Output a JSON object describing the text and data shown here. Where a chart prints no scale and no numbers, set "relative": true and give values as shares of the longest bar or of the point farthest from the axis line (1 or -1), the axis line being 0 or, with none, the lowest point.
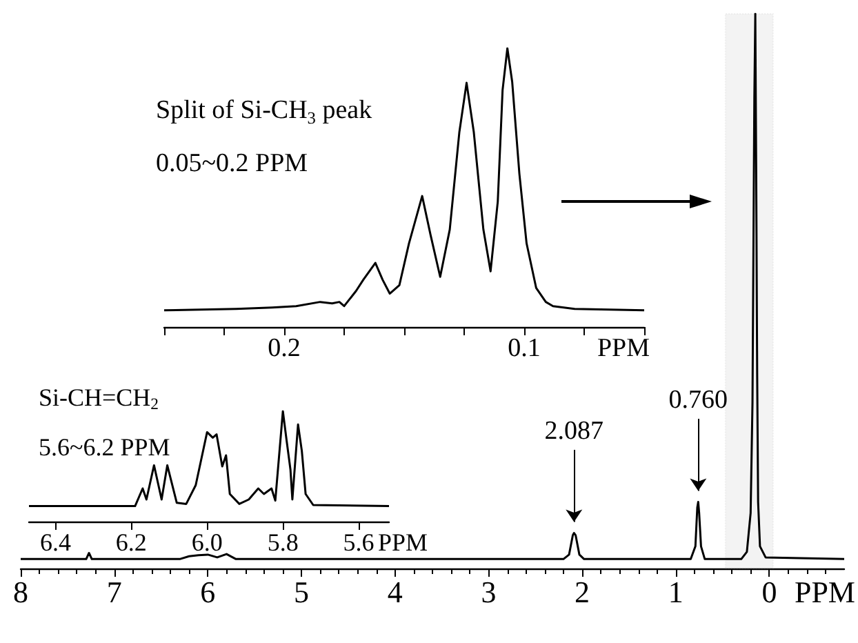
{
  "chart_data": [
    {
      "type": "line",
      "xlabel": "PPM",
      "relative": true,
      "xlim": [
        8,
        -0.8
      ],
      "xticks": [
        8,
        7,
        6,
        5,
        4,
        3,
        2,
        1,
        0
      ],
      "x": [
        8,
        7.3,
        7.27,
        7.24,
        6.3,
        6.2,
        6.1,
        6.0,
        5.9,
        5.8,
        5.7,
        2.2,
        2.14,
        2.1,
        2.087,
        2.07,
        2.03,
        1.98,
        0.84,
        0.79,
        0.77,
        0.76,
        0.75,
        0.73,
        0.69,
        0.3,
        0.24,
        0.2,
        0.18,
        0.16,
        0.15,
        0.14,
        0.13,
        0.12,
        0.1,
        0.07,
        0.04,
        -0.8
      ],
      "series": [
        {
          "color": "#000000",
          "values": [
            0.017,
            0.017,
            0.028,
            0.017,
            0.017,
            0.022,
            0.024,
            0.025,
            0.02,
            0.026,
            0.017,
            0.017,
            0.025,
            0.06,
            0.064,
            0.06,
            0.025,
            0.017,
            0.017,
            0.04,
            0.11,
            0.12,
            0.1,
            0.04,
            0.017,
            0.017,
            0.03,
            0.1,
            0.3,
            0.85,
            1.0,
            0.7,
            0.35,
            0.12,
            0.04,
            0.03,
            0.02,
            0.017
          ]
        }
      ],
      "annotations": [
        {
          "text": "2.087",
          "x": 2.087,
          "y": 0.064
        },
        {
          "text": "0.760",
          "x": 0.76,
          "y": 0.12
        }
      ],
      "bands": [
        {
          "axis": "x",
          "from": 0.47,
          "to": -0.04,
          "color": "#999999"
        }
      ]
    },
    {
      "type": "line",
      "title": "Split of Si-CH$_{3}$ peak",
      "subtitle": "0.05~0.2 PPM",
      "xlabel": "PPM",
      "relative": true,
      "xlim": [
        0.25,
        0.05
      ],
      "xticks": [
        {
          "value": 0.25,
          "label": null
        },
        {
          "value": 0.225,
          "label": null
        },
        0.2,
        {
          "value": 0.175,
          "label": null
        },
        {
          "value": 0.15,
          "label": null
        },
        {
          "value": 0.125,
          "label": null
        },
        0.1,
        {
          "value": 0.075,
          "label": null
        },
        {
          "value": 0.05,
          "label": null
        }
      ],
      "x": [
        0.25,
        0.22,
        0.205,
        0.195,
        0.185,
        0.18,
        0.177,
        0.175,
        0.17,
        0.167,
        0.162,
        0.159,
        0.156,
        0.152,
        0.148,
        0.1425,
        0.139,
        0.135,
        0.131,
        0.127,
        0.124,
        0.121,
        0.117,
        0.114,
        0.111,
        0.109,
        0.107,
        0.105,
        0.102,
        0.099,
        0.095,
        0.091,
        0.088,
        0.079,
        0.05
      ],
      "series": [
        {
          "color": "#000000",
          "values": [
            0.06,
            0.065,
            0.07,
            0.075,
            0.09,
            0.085,
            0.09,
            0.075,
            0.13,
            0.17,
            0.23,
            0.17,
            0.12,
            0.15,
            0.3,
            0.47,
            0.33,
            0.18,
            0.35,
            0.7,
            0.876,
            0.7,
            0.35,
            0.2,
            0.45,
            0.85,
            1.0,
            0.88,
            0.55,
            0.3,
            0.14,
            0.09,
            0.075,
            0.065,
            0.06
          ]
        }
      ]
    },
    {
      "type": "line",
      "title": "Si-CH=CH$_{2}$",
      "subtitle": "5.6~6.2 PPM",
      "xlabel": "PPM",
      "relative": true,
      "xlim": [
        6.47,
        5.52
      ],
      "xticks": [
        6.4,
        6.2,
        {
          "value": 6,
          "label": "6.0"
        },
        5.8,
        5.6
      ],
      "x": [
        6.47,
        6.2,
        6.19,
        6.17,
        6.16,
        6.14,
        6.12,
        6.105,
        6.08,
        6.055,
        6.03,
        6.0,
        5.985,
        5.975,
        5.96,
        5.95,
        5.94,
        5.915,
        5.89,
        5.865,
        5.85,
        5.83,
        5.82,
        5.8,
        5.79,
        5.78,
        5.775,
        5.76,
        5.75,
        5.74,
        5.72,
        5.52
      ],
      "series": [
        {
          "color": "#000000",
          "values": [
            0.14,
            0.14,
            0.14,
            0.3,
            0.2,
            0.51,
            0.2,
            0.51,
            0.17,
            0.16,
            0.33,
            0.81,
            0.76,
            0.79,
            0.5,
            0.6,
            0.25,
            0.16,
            0.2,
            0.3,
            0.25,
            0.3,
            0.19,
            1.0,
            0.73,
            0.47,
            0.2,
            0.88,
            0.64,
            0.25,
            0.15,
            0.14
          ]
        }
      ]
    }
  ]
}
